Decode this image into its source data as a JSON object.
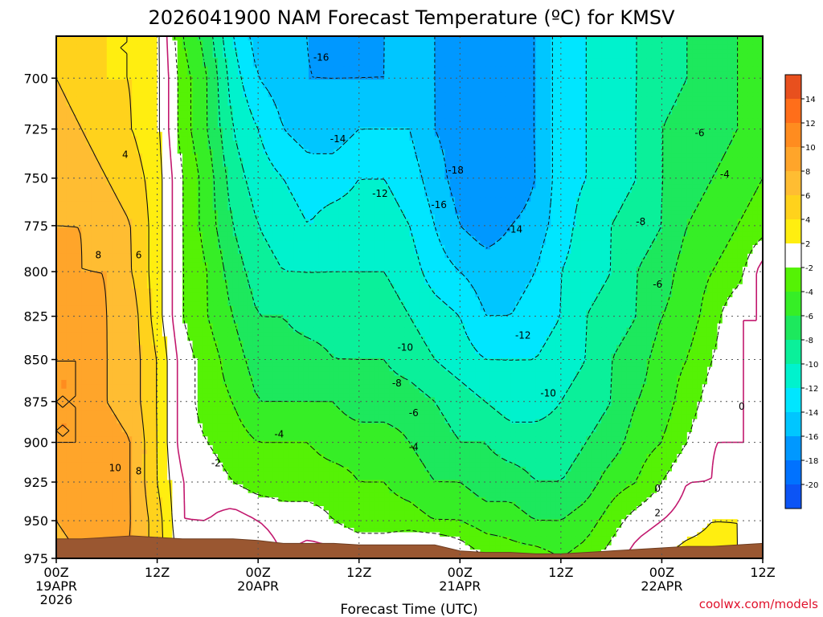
{
  "chart_data": {
    "type": "heatmap",
    "title": "2026041900 NAM Forecast Temperature (ºC) for KMSV",
    "xlabel": "Forecast Time (UTC)",
    "ylabel": "",
    "x_unit": "forecast hour",
    "xlim": [
      0,
      84
    ],
    "ylim": [
      975,
      680
    ],
    "y_scale": "pressure (hPa), increasing downward",
    "x_ticks": [
      {
        "hour": 0,
        "label": "00Z",
        "sub": "19APR",
        "sub2": "2026"
      },
      {
        "hour": 12,
        "label": "12Z",
        "sub": "",
        "sub2": ""
      },
      {
        "hour": 24,
        "label": "00Z",
        "sub": "20APR",
        "sub2": ""
      },
      {
        "hour": 36,
        "label": "12Z",
        "sub": "",
        "sub2": ""
      },
      {
        "hour": 48,
        "label": "00Z",
        "sub": "21APR",
        "sub2": ""
      },
      {
        "hour": 60,
        "label": "12Z",
        "sub": "",
        "sub2": ""
      },
      {
        "hour": 72,
        "label": "00Z",
        "sub": "22APR",
        "sub2": ""
      },
      {
        "hour": 84,
        "label": "12Z",
        "sub": "",
        "sub2": ""
      }
    ],
    "y_ticks": [
      700,
      725,
      750,
      775,
      800,
      825,
      850,
      875,
      900,
      925,
      950,
      975
    ],
    "grid": true,
    "colorbar": {
      "labels": [
        "14",
        "12",
        "10",
        "8",
        "6",
        "4",
        "2",
        "-2",
        "-4",
        "-6",
        "-8",
        "-10",
        "-12",
        "-14",
        "-16",
        "-18",
        "-20"
      ],
      "colors": [
        "#e8501e",
        "#ff6e1a",
        "#ff8c1f",
        "#ffa52a",
        "#ffbd32",
        "#ffd21c",
        "#ffee10",
        "#ffffff",
        "#55f205",
        "#36ee26",
        "#1de85d",
        "#0af09a",
        "#00f2cd",
        "#00e6ff",
        "#00c6ff",
        "#0098ff",
        "#0072ff",
        "#0c54f5"
      ]
    },
    "temperature_hours": [
      0,
      3,
      6,
      9,
      12,
      15,
      18,
      21,
      24,
      27,
      30,
      33,
      36,
      39,
      42,
      45,
      48,
      51,
      54,
      57,
      60,
      63,
      66,
      69,
      72,
      75,
      78,
      81,
      84
    ],
    "temperature_levels": [
      680,
      700,
      725,
      750,
      775,
      800,
      825,
      850,
      875,
      900,
      925,
      950,
      975
    ],
    "temperature_c": [
      [
        5,
        5,
        4,
        4,
        2.5,
        -4,
        -7,
        -12,
        -15,
        -16,
        -16,
        -17,
        -17,
        -16,
        -15,
        -16,
        -17,
        -17,
        -17,
        -16,
        -13,
        -12,
        -11,
        -10,
        -9,
        -8,
        -7,
        -6,
        -5
      ],
      [
        6,
        5,
        4,
        4,
        2.5,
        -3,
        -6,
        -11,
        -14,
        -15,
        -16,
        -16,
        -16,
        -16,
        -15,
        -16,
        -17,
        -17,
        -17,
        -16,
        -13,
        -12,
        -11,
        -10,
        -9,
        -8,
        -7,
        -6,
        -5
      ],
      [
        7,
        6,
        5,
        4,
        2.5,
        -3,
        -6,
        -10,
        -12,
        -14,
        -15,
        -15,
        -14,
        -14,
        -14,
        -16,
        -17,
        -17,
        -17,
        -16,
        -13,
        -12,
        -11,
        -10,
        -8,
        -7,
        -7,
        -6,
        -5
      ],
      [
        7,
        7,
        6,
        5,
        3,
        -2,
        -5,
        -9,
        -11,
        -12,
        -13,
        -13,
        -12,
        -12,
        -13,
        -15,
        -17,
        -18,
        -18,
        -16,
        -13,
        -12,
        -11,
        -10,
        -8,
        -7,
        -6,
        -5,
        -4
      ],
      [
        8,
        8,
        7,
        6,
        3,
        -2,
        -5,
        -8,
        -10,
        -11,
        -12,
        -11,
        -11,
        -11,
        -12,
        -14,
        -16,
        -17,
        -16,
        -15,
        -13,
        -11,
        -10,
        -9,
        -8,
        -6,
        -5,
        -4,
        -3
      ],
      [
        9,
        8,
        8,
        6,
        3,
        -2,
        -4,
        -7,
        -9,
        -10,
        -10,
        -10,
        -10,
        -10,
        -11,
        -13,
        -14,
        -15,
        -15,
        -14,
        -12,
        -11,
        -10,
        -8,
        -7,
        -5,
        -4,
        -3,
        1
      ],
      [
        9,
        9,
        8,
        7,
        3,
        -2,
        -4,
        -6,
        -8,
        -8,
        -9,
        -9,
        -9,
        -9,
        -10,
        -11,
        -12,
        -14,
        -14,
        -13,
        -12,
        -10,
        -9,
        -8,
        -6,
        -5,
        -3,
        0,
        0
      ],
      [
        10,
        10,
        8,
        7,
        4,
        -1,
        -3,
        -5,
        -7,
        -7,
        -7,
        -8,
        -8,
        -8,
        -9,
        -10,
        -11,
        -12,
        -12,
        -12,
        -11,
        -10,
        -8,
        -7,
        -5,
        -4,
        -2,
        0,
        0
      ],
      [
        10,
        10,
        8,
        7,
        4,
        -1,
        -3,
        -4,
        -6,
        -6,
        -6,
        -6,
        -7,
        -7,
        -7,
        -8,
        -9,
        -10,
        -11,
        -11,
        -10,
        -9,
        -8,
        -6,
        -5,
        -3,
        -1,
        0,
        0
      ],
      [
        10,
        10,
        9,
        8,
        4,
        -1,
        -2,
        -3,
        -4,
        -4,
        -4,
        -5,
        -5,
        -5,
        -6,
        -7,
        -8,
        -8,
        -9,
        -9,
        -9,
        -8,
        -7,
        -5,
        -4,
        -2,
        0,
        0,
        0
      ],
      [
        9,
        10,
        9,
        8,
        4,
        0,
        -1,
        -2,
        -3,
        -3,
        -3,
        -3,
        -4,
        -4,
        -5,
        -6,
        -6,
        -7,
        -7,
        -8,
        -8,
        -7,
        -5,
        -4,
        -2,
        0,
        0,
        1,
        0
      ],
      [
        8,
        9,
        9,
        8,
        5,
        0,
        0,
        1,
        0,
        -1,
        -1,
        -2,
        -3,
        -3,
        -3,
        -4,
        -4,
        -5,
        -5,
        -6,
        -6,
        -5,
        -3,
        -1,
        0,
        1,
        2,
        2,
        1
      ],
      [
        7,
        8,
        8,
        8,
        5,
        1,
        1,
        3,
        2,
        0,
        1,
        1,
        0,
        0,
        1,
        2,
        0,
        -2,
        -3,
        -3,
        -4,
        -3,
        -1,
        1,
        2,
        3,
        3,
        2,
        1
      ]
    ],
    "terrain_surface_hpa": [
      962,
      962,
      961,
      960,
      961,
      962,
      962,
      962,
      963,
      965,
      965,
      965,
      966,
      966,
      966,
      966,
      970,
      971,
      971,
      972,
      972,
      971,
      970,
      969,
      968,
      967,
      967,
      966,
      965
    ],
    "contour_labels": [
      {
        "text": "-16",
        "hour": 31.5,
        "level": 690
      },
      {
        "text": "-14",
        "hour": 33.5,
        "level": 730
      },
      {
        "text": "-12",
        "hour": 38.5,
        "level": 758
      },
      {
        "text": "-18",
        "hour": 47.5,
        "level": 746
      },
      {
        "text": "-16",
        "hour": 45.5,
        "level": 764
      },
      {
        "text": "-14",
        "hour": 54.5,
        "level": 777
      },
      {
        "text": "-8",
        "hour": 69.5,
        "level": 773
      },
      {
        "text": "-6",
        "hour": 76.5,
        "level": 727
      },
      {
        "text": "-4",
        "hour": 79.5,
        "level": 748
      },
      {
        "text": "-6",
        "hour": 71.5,
        "level": 807
      },
      {
        "text": "-12",
        "hour": 55.5,
        "level": 836
      },
      {
        "text": "-10",
        "hour": 41.5,
        "level": 843
      },
      {
        "text": "-10",
        "hour": 58.5,
        "level": 870
      },
      {
        "text": "-8",
        "hour": 40.5,
        "level": 864
      },
      {
        "text": "-6",
        "hour": 42.5,
        "level": 882
      },
      {
        "text": "-4",
        "hour": 26.5,
        "level": 895
      },
      {
        "text": "-4",
        "hour": 42.5,
        "level": 903
      },
      {
        "text": "-2",
        "hour": 19.0,
        "level": 913
      },
      {
        "text": "0",
        "hour": 71.5,
        "level": 929
      },
      {
        "text": "2",
        "hour": 71.5,
        "level": 945
      },
      {
        "text": "0",
        "hour": 81.5,
        "level": 878
      },
      {
        "text": "4",
        "hour": 8.2,
        "level": 738
      },
      {
        "text": "8",
        "hour": 5.0,
        "level": 791
      },
      {
        "text": "6",
        "hour": 9.8,
        "level": 791
      },
      {
        "text": "10",
        "hour": 7.0,
        "level": 916
      },
      {
        "text": "8",
        "hour": 9.8,
        "level": 918
      }
    ]
  },
  "watermark": "coolwx.com/models",
  "watermark_color": "#e0112b"
}
